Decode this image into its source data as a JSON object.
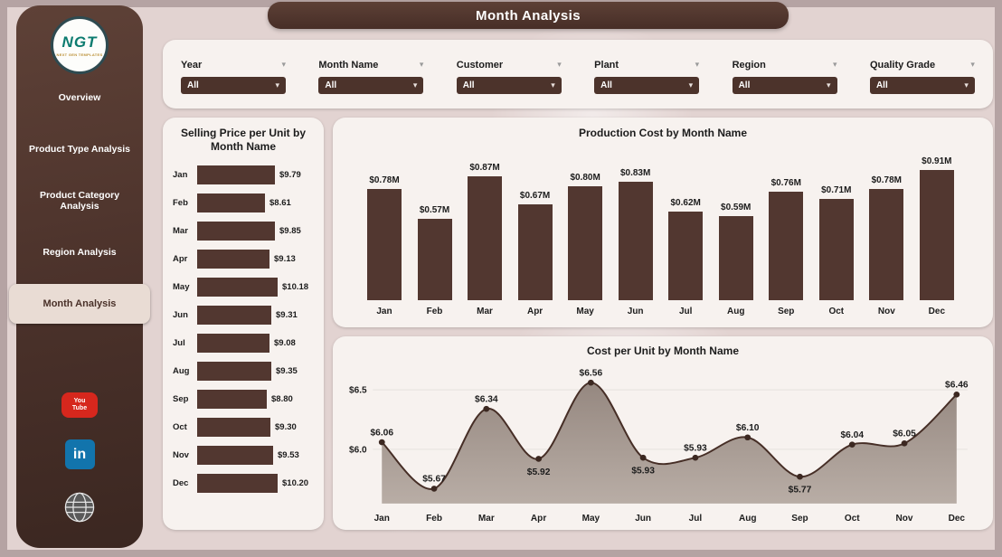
{
  "app": {
    "title": "Month Analysis"
  },
  "sidebar": {
    "logo": {
      "text": "NGT",
      "subtext": "NEXT GEN TEMPLATES"
    },
    "items": [
      {
        "label": "Overview",
        "active": false
      },
      {
        "label": "Product Type Analysis",
        "active": false
      },
      {
        "label": "Product Category Analysis",
        "active": false
      },
      {
        "label": "Region Analysis",
        "active": false
      },
      {
        "label": "Month Analysis",
        "active": true
      }
    ],
    "social": {
      "youtube": {
        "line1": "You",
        "line2": "Tube"
      },
      "linkedin": {
        "label": "in"
      }
    }
  },
  "filters": [
    {
      "label": "Year",
      "value": "All"
    },
    {
      "label": "Month Name",
      "value": "All"
    },
    {
      "label": "Customer",
      "value": "All"
    },
    {
      "label": "Plant",
      "value": "All"
    },
    {
      "label": "Region",
      "value": "All"
    },
    {
      "label": "Quality Grade",
      "value": "All"
    }
  ],
  "chart_data": [
    {
      "type": "bar",
      "orientation": "horizontal",
      "title": "Selling Price per Unit by Month Name",
      "categories": [
        "Jan",
        "Feb",
        "Mar",
        "Apr",
        "May",
        "Jun",
        "Jul",
        "Aug",
        "Sep",
        "Oct",
        "Nov",
        "Dec"
      ],
      "values": [
        9.79,
        8.61,
        9.85,
        9.13,
        10.18,
        9.31,
        9.08,
        9.35,
        8.8,
        9.3,
        9.53,
        10.2
      ],
      "labels": [
        "$9.79",
        "$8.61",
        "$9.85",
        "$9.13",
        "$10.18",
        "$9.31",
        "$9.08",
        "$9.35",
        "$8.80",
        "$9.30",
        "$9.53",
        "$10.20"
      ],
      "xlim": [
        0,
        10.5
      ]
    },
    {
      "type": "bar",
      "orientation": "vertical",
      "title": "Production Cost by Month Name",
      "categories": [
        "Jan",
        "Feb",
        "Mar",
        "Apr",
        "May",
        "Jun",
        "Jul",
        "Aug",
        "Sep",
        "Oct",
        "Nov",
        "Dec"
      ],
      "values": [
        0.78,
        0.57,
        0.87,
        0.67,
        0.8,
        0.83,
        0.62,
        0.59,
        0.76,
        0.71,
        0.78,
        0.91
      ],
      "labels": [
        "$0.78M",
        "$0.57M",
        "$0.87M",
        "$0.67M",
        "$0.80M",
        "$0.83M",
        "$0.62M",
        "$0.59M",
        "$0.76M",
        "$0.71M",
        "$0.78M",
        "$0.91M"
      ],
      "ylim": [
        0,
        0.95
      ]
    },
    {
      "type": "area",
      "title": "Cost per Unit by Month Name",
      "categories": [
        "Jan",
        "Feb",
        "Mar",
        "Apr",
        "May",
        "Jun",
        "Jul",
        "Aug",
        "Sep",
        "Oct",
        "Nov",
        "Dec"
      ],
      "values": [
        6.06,
        5.67,
        6.34,
        5.92,
        6.56,
        5.93,
        5.93,
        6.1,
        5.77,
        6.04,
        6.05,
        6.46
      ],
      "labels": [
        "$6.06",
        "$5.67",
        "$6.34",
        "$5.92",
        "$6.56",
        "$5.93",
        "$5.93",
        "$6.10",
        "$5.77",
        "$6.04",
        "$6.05",
        "$6.46"
      ],
      "yticks": [
        {
          "label": "$6.5",
          "value": 6.5
        },
        {
          "label": "$6.0",
          "value": 6.0
        }
      ],
      "ylim": [
        5.5,
        6.65
      ]
    }
  ],
  "colors": {
    "brand_brown": "#4c332b",
    "bar": "#523730",
    "line": "#462e26",
    "area_fill": "#a69a92",
    "panel": "#f7f2ef",
    "background": "#e2d3d1",
    "active_pill": "#e9dcd4",
    "youtube_red": "#d6271d",
    "linkedin_blue": "#1274ac"
  }
}
